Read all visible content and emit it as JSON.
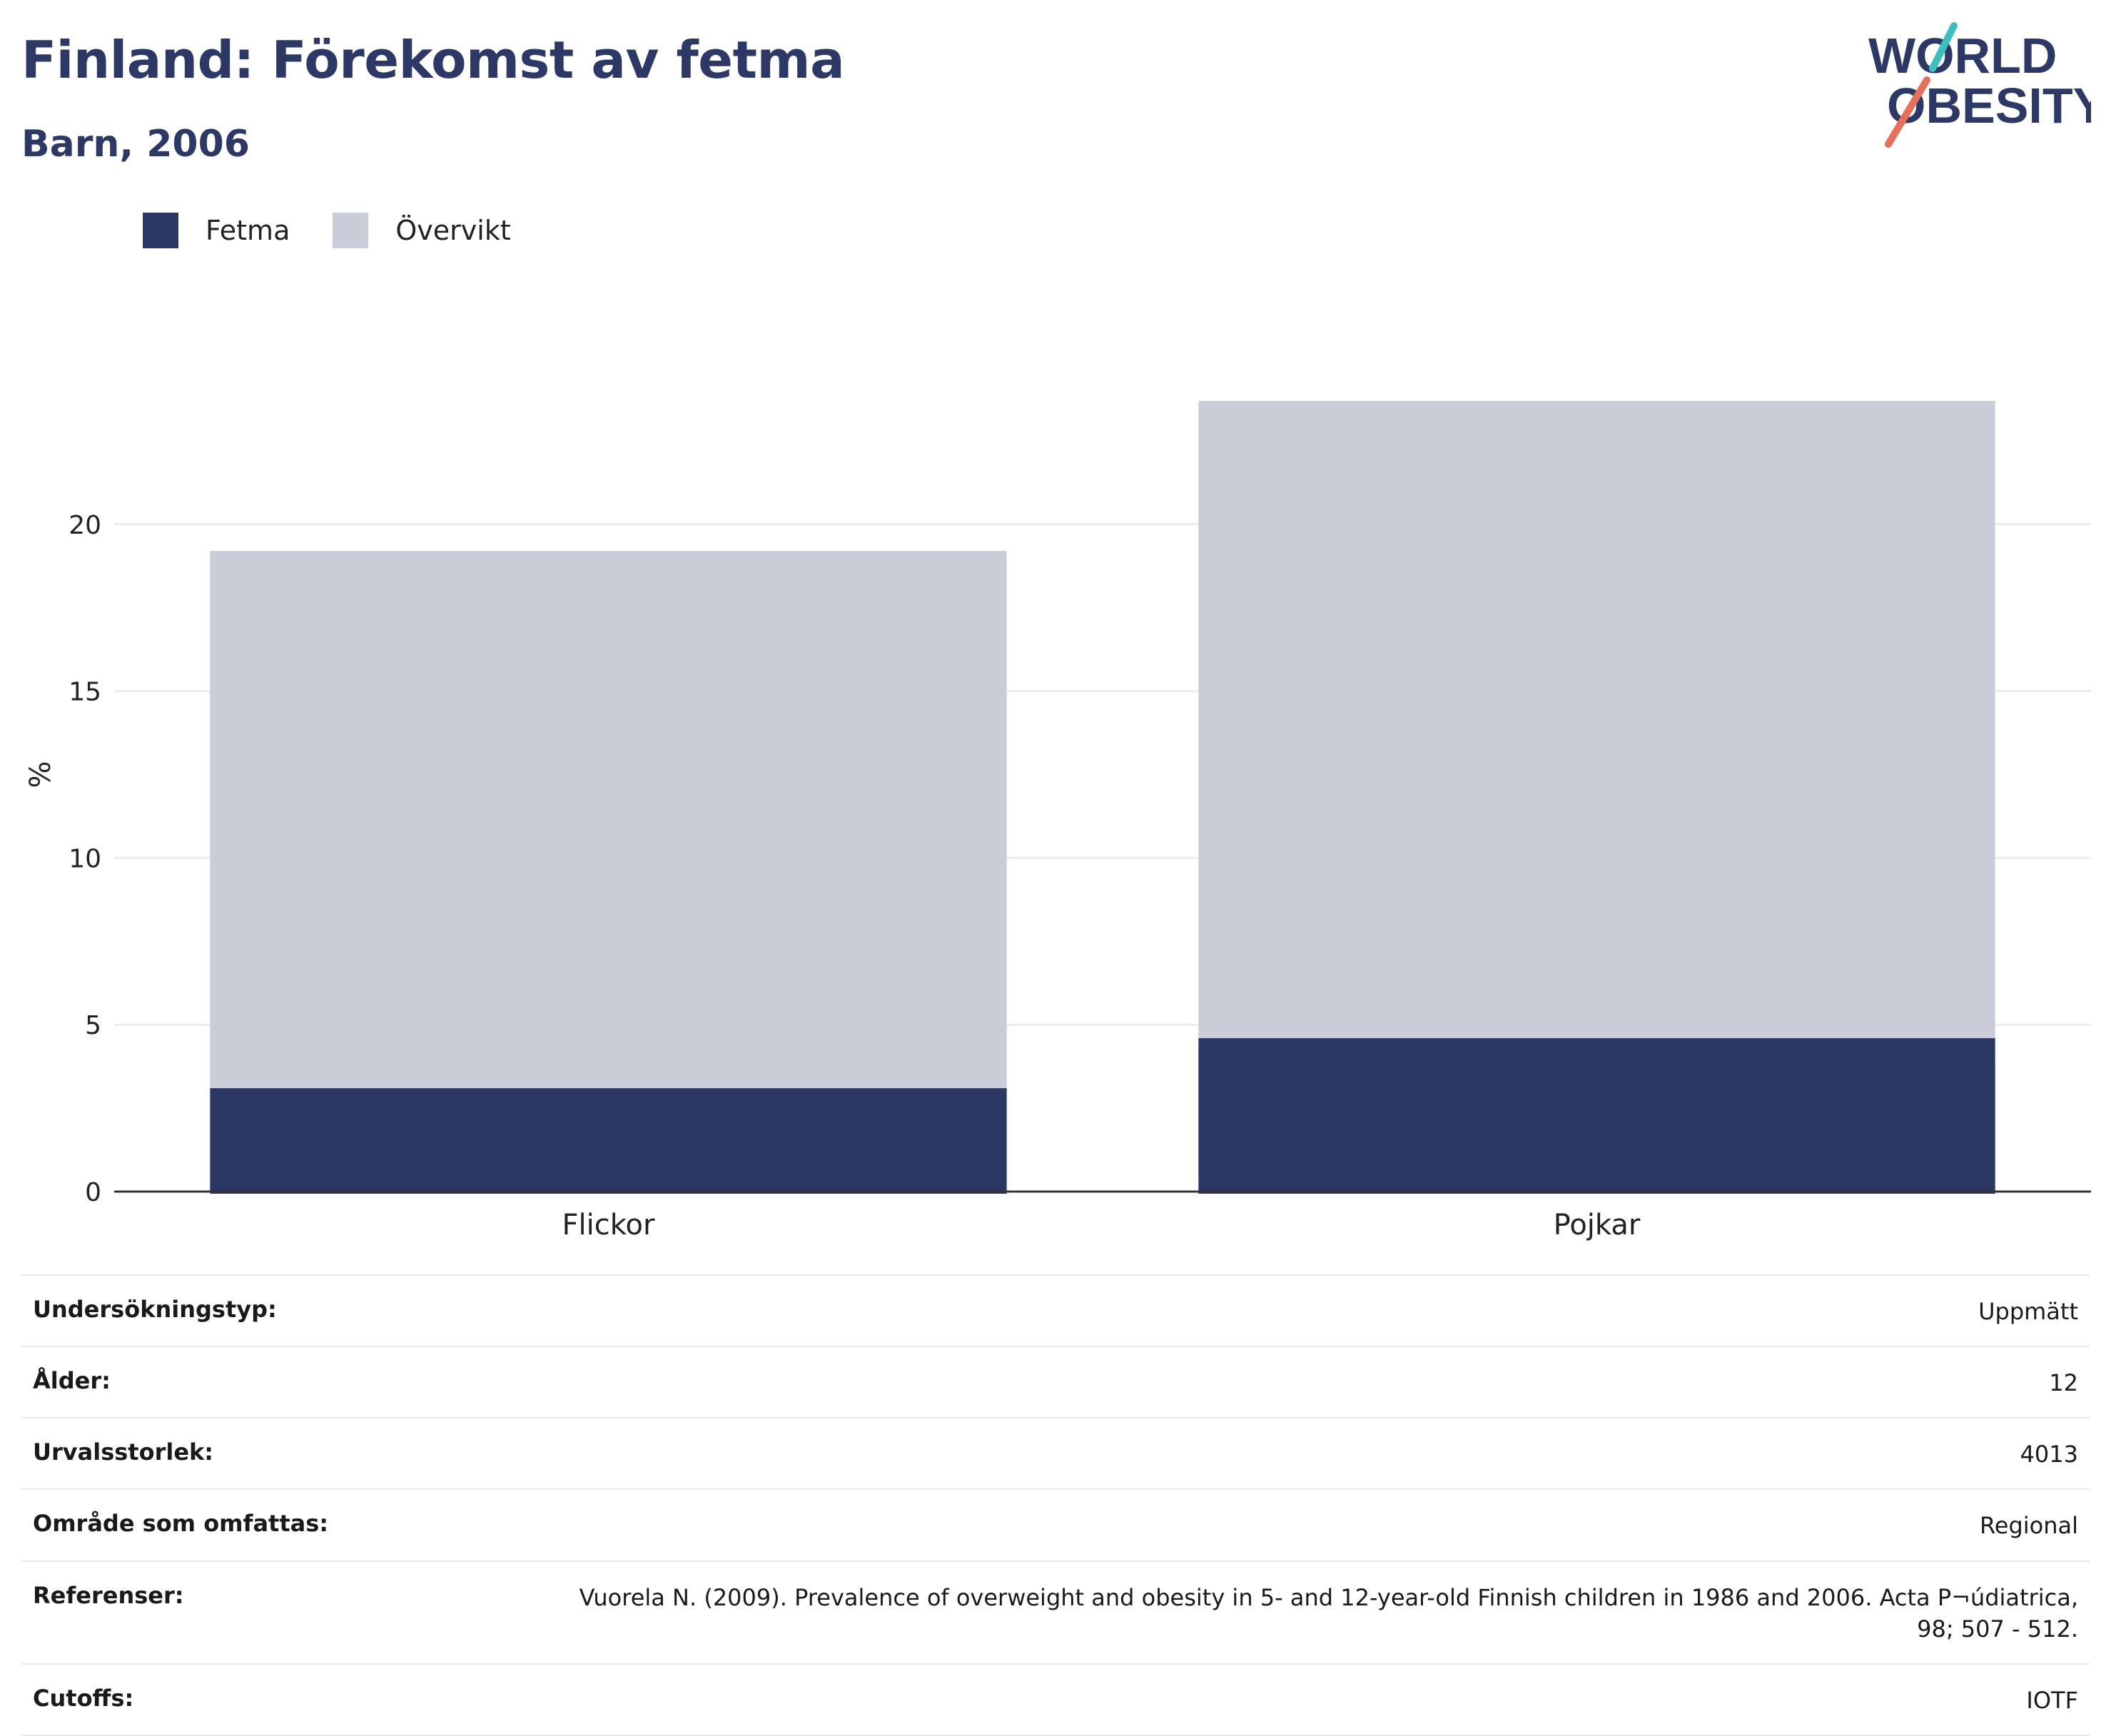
{
  "header": {
    "title": "Finland: Förekomst av fetma",
    "subtitle": "Barn, 2006"
  },
  "logo": {
    "line1": "WORLD",
    "line2": "OBESITY"
  },
  "colors": {
    "fetma": "#2b3765",
    "overvikt": "#caccd8",
    "title": "#2c3866",
    "logo_teal": "#3bbfbf",
    "logo_coral": "#e8705a"
  },
  "chart_data": {
    "type": "bar",
    "stacked": true,
    "categories": [
      "Flickor",
      "Pojkar"
    ],
    "series": [
      {
        "name": "Fetma",
        "values": [
          3.1,
          4.6
        ]
      },
      {
        "name": "Övervikt",
        "values": [
          16.1,
          19.1
        ]
      }
    ],
    "title": "",
    "xlabel": "",
    "ylabel": "%",
    "yticks": [
      0,
      5,
      10,
      15,
      20
    ],
    "ylim": [
      0,
      24.5
    ],
    "grid": true,
    "legend_position": "top-left"
  },
  "info": [
    {
      "label": "Undersökningstyp:",
      "value": "Uppmätt"
    },
    {
      "label": "Ålder:",
      "value": "12"
    },
    {
      "label": "Urvalsstorlek:",
      "value": "4013"
    },
    {
      "label": "Område som omfattas:",
      "value": "Regional"
    },
    {
      "label": "Referenser:",
      "value": "Vuorela N. (2009). Prevalence of overweight and obesity in 5- and 12-year-old Finnish children in 1986 and 2006. Acta P¬údiatrica, 98; 507 - 512."
    },
    {
      "label": "Cutoffs:",
      "value": "IOTF"
    }
  ]
}
